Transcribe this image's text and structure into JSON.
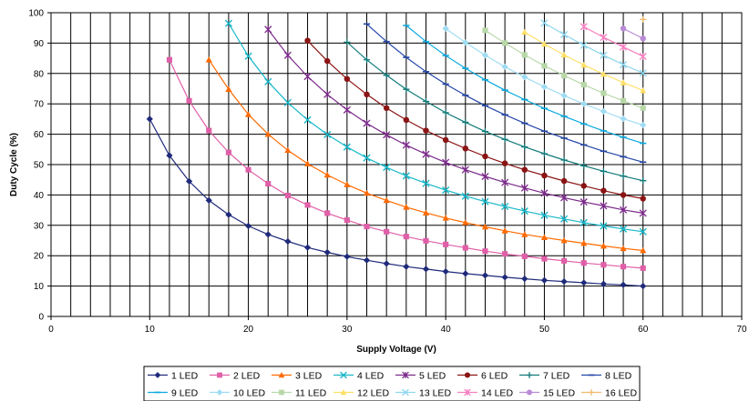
{
  "chart_data": {
    "type": "line",
    "xlabel": "Supply Voltage (V)",
    "ylabel": "Duty Cycle (%)",
    "xlim": [
      0,
      70
    ],
    "ylim": [
      0,
      100
    ],
    "xticks": [
      0,
      10,
      20,
      30,
      40,
      50,
      60,
      70
    ],
    "yticks": [
      0,
      10,
      20,
      30,
      40,
      50,
      60,
      70,
      80,
      90,
      100
    ],
    "x_minor_step": 2,
    "grid": true,
    "legend": "bottom",
    "x": [
      10,
      12,
      14,
      16,
      18,
      20,
      22,
      24,
      26,
      28,
      30,
      32,
      34,
      36,
      38,
      40,
      42,
      44,
      46,
      48,
      50,
      52,
      54,
      56,
      58,
      60
    ],
    "series": [
      {
        "name": "1 LED",
        "color": "#1f2a7a",
        "marker": "diamond",
        "values": [
          65,
          53,
          44.5,
          38.2,
          33.5,
          29.8,
          27,
          24.7,
          22.7,
          21.1,
          19.7,
          18.5,
          17.4,
          16.4,
          15.6,
          14.8,
          14.1,
          13.5,
          12.9,
          12.4,
          11.9,
          11.5,
          11.1,
          10.7,
          10.4,
          10.0
        ]
      },
      {
        "name": "2 LED",
        "color": "#e05fa8",
        "marker": "square",
        "values": [
          null,
          84.5,
          71,
          61.2,
          54,
          48.3,
          43.7,
          39.8,
          36.7,
          34,
          31.7,
          29.6,
          27.9,
          26.3,
          24.9,
          23.7,
          22.6,
          21.5,
          20.6,
          19.8,
          19,
          18.3,
          17.6,
          17,
          16.4,
          15.9
        ]
      },
      {
        "name": "3 LED",
        "color": "#ff6a00",
        "marker": "triangle",
        "values": [
          null,
          null,
          null,
          84.5,
          74.8,
          66.5,
          60,
          54.7,
          50.3,
          46.6,
          43.4,
          40.6,
          38.2,
          36,
          34.1,
          32.4,
          30.9,
          29.5,
          28.2,
          27,
          26,
          25,
          24.1,
          23.2,
          22.4,
          21.7
        ]
      },
      {
        "name": "4 LED",
        "color": "#18b7c8",
        "marker": "x",
        "values": [
          null,
          null,
          null,
          null,
          96.5,
          85.7,
          77.3,
          70.4,
          64.7,
          59.9,
          55.8,
          52.2,
          49.1,
          46.3,
          43.8,
          41.6,
          39.6,
          37.8,
          36.2,
          34.7,
          33.3,
          32.1,
          30.9,
          29.8,
          28.8,
          27.9
        ]
      },
      {
        "name": "5 LED",
        "color": "#7b2a8a",
        "marker": "star",
        "values": [
          null,
          null,
          null,
          null,
          null,
          null,
          94.5,
          86,
          79,
          73.1,
          68,
          63.6,
          59.8,
          56.4,
          53.4,
          50.7,
          48.3,
          46.1,
          44.1,
          42.3,
          40.6,
          39.1,
          37.7,
          36.4,
          35.1,
          34
        ]
      },
      {
        "name": "6 LED",
        "color": "#8b1414",
        "marker": "circle",
        "values": [
          null,
          null,
          null,
          null,
          null,
          null,
          null,
          null,
          90.8,
          84.1,
          78.2,
          73.1,
          68.6,
          64.7,
          61.2,
          58.1,
          55.3,
          52.7,
          50.4,
          48.3,
          46.4,
          44.6,
          43,
          41.4,
          40,
          38.8
        ]
      },
      {
        "name": "7 LED",
        "color": "#107a78",
        "marker": "plus",
        "values": [
          null,
          null,
          null,
          null,
          null,
          null,
          null,
          null,
          null,
          null,
          90.3,
          84.5,
          79.4,
          74.8,
          70.8,
          67.1,
          63.9,
          60.9,
          58.3,
          55.8,
          53.6,
          51.5,
          49.6,
          47.8,
          46.2,
          44.7
        ]
      },
      {
        "name": "8 LED",
        "color": "#2446a8",
        "marker": "dash",
        "values": [
          null,
          null,
          null,
          null,
          null,
          null,
          null,
          null,
          null,
          null,
          null,
          96.3,
          90.5,
          85.3,
          80.6,
          76.5,
          72.8,
          69.4,
          66.4,
          63.6,
          61,
          58.7,
          56.5,
          54.4,
          52.6,
          50.8
        ]
      },
      {
        "name": "9 LED",
        "color": "#0aa9de",
        "marker": "dash",
        "values": [
          null,
          null,
          null,
          null,
          null,
          null,
          null,
          null,
          null,
          null,
          null,
          null,
          null,
          95.8,
          90.5,
          85.9,
          81.7,
          77.9,
          74.5,
          71.4,
          68.5,
          65.9,
          63.4,
          61.1,
          59,
          57
        ]
      },
      {
        "name": "10 LED",
        "color": "#9fdcf3",
        "marker": "diamond",
        "values": [
          null,
          null,
          null,
          null,
          null,
          null,
          null,
          null,
          null,
          null,
          null,
          null,
          null,
          null,
          null,
          94.8,
          90.2,
          86,
          82.2,
          78.8,
          75.6,
          72.7,
          70,
          67.5,
          65.1,
          63
        ]
      },
      {
        "name": "11 LED",
        "color": "#b8d8a8",
        "marker": "square",
        "values": [
          null,
          null,
          null,
          null,
          null,
          null,
          null,
          null,
          null,
          null,
          null,
          null,
          null,
          null,
          null,
          null,
          null,
          94.2,
          90,
          86.1,
          82.5,
          79.3,
          76.3,
          73.5,
          71,
          68.6
        ]
      },
      {
        "name": "12 LED",
        "color": "#ffe066",
        "marker": "triangle",
        "values": [
          null,
          null,
          null,
          null,
          null,
          null,
          null,
          null,
          null,
          null,
          null,
          null,
          null,
          null,
          null,
          null,
          null,
          null,
          null,
          93.6,
          89.7,
          86.1,
          82.8,
          79.8,
          77,
          74.4
        ]
      },
      {
        "name": "13 LED",
        "color": "#8fd6ee",
        "marker": "x",
        "values": [
          null,
          null,
          null,
          null,
          null,
          null,
          null,
          null,
          null,
          null,
          null,
          null,
          null,
          null,
          null,
          null,
          null,
          null,
          null,
          null,
          96.6,
          92.8,
          89.3,
          86,
          82.9,
          80.1
        ]
      },
      {
        "name": "14 LED",
        "color": "#f57fbf",
        "marker": "star",
        "values": [
          null,
          null,
          null,
          null,
          null,
          null,
          null,
          null,
          null,
          null,
          null,
          null,
          null,
          null,
          null,
          null,
          null,
          null,
          null,
          null,
          null,
          null,
          95.4,
          91.9,
          88.7,
          85.6
        ]
      },
      {
        "name": "15 LED",
        "color": "#b98bd6",
        "marker": "circle",
        "values": [
          null,
          null,
          null,
          null,
          null,
          null,
          null,
          null,
          null,
          null,
          null,
          null,
          null,
          null,
          null,
          null,
          null,
          null,
          null,
          null,
          null,
          null,
          null,
          null,
          94.8,
          91.5
        ]
      },
      {
        "name": "16 LED",
        "color": "#f0b96a",
        "marker": "plus",
        "values": [
          null,
          null,
          null,
          null,
          null,
          null,
          null,
          null,
          null,
          null,
          null,
          null,
          null,
          null,
          null,
          null,
          null,
          null,
          null,
          null,
          null,
          null,
          null,
          null,
          null,
          97.8
        ]
      }
    ]
  }
}
